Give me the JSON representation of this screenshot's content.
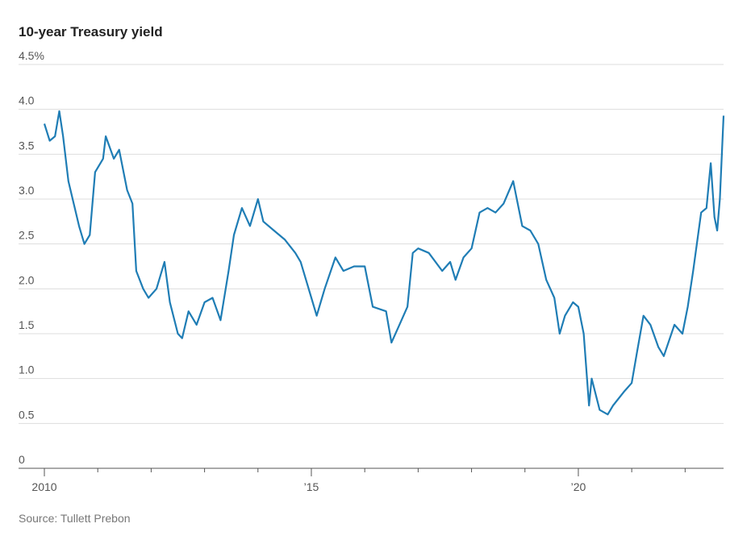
{
  "chart_data": {
    "type": "line",
    "title": "10-year Treasury yield",
    "source": "Source: Tullett Prebon",
    "xlim": [
      2010,
      2022.72
    ],
    "ylim": [
      0,
      4.5
    ],
    "xticks": [
      {
        "value": 2010,
        "label": "2010"
      },
      {
        "value": 2015,
        "label": "’15"
      },
      {
        "value": 2020,
        "label": "’20"
      }
    ],
    "xminorticks": [
      2011,
      2012,
      2013,
      2014,
      2016,
      2017,
      2018,
      2019,
      2021,
      2022
    ],
    "yticks": [
      0,
      0.5,
      {
        "value": 1,
        "label": "1.0"
      },
      1.5,
      {
        "value": 2,
        "label": "2.0"
      },
      2.5,
      {
        "value": 3,
        "label": "3.0"
      },
      3.5,
      {
        "value": 4,
        "label": "4.0"
      },
      {
        "value": 4.5,
        "label": "4.5%"
      }
    ],
    "grid": true,
    "x": [
      2010.0,
      2010.1,
      2010.2,
      2010.28,
      2010.35,
      2010.45,
      2010.55,
      2010.65,
      2010.75,
      2010.85,
      2010.95,
      2011.1,
      2011.15,
      2011.3,
      2011.4,
      2011.55,
      2011.65,
      2011.72,
      2011.85,
      2011.95,
      2012.1,
      2012.25,
      2012.35,
      2012.5,
      2012.58,
      2012.7,
      2012.85,
      2013.0,
      2013.15,
      2013.3,
      2013.45,
      2013.55,
      2013.7,
      2013.85,
      2014.0,
      2014.1,
      2014.3,
      2014.5,
      2014.7,
      2014.8,
      2015.0,
      2015.1,
      2015.25,
      2015.45,
      2015.6,
      2015.8,
      2016.0,
      2016.15,
      2016.4,
      2016.5,
      2016.65,
      2016.8,
      2016.9,
      2017.0,
      2017.2,
      2017.45,
      2017.6,
      2017.7,
      2017.85,
      2018.0,
      2018.15,
      2018.3,
      2018.45,
      2018.6,
      2018.78,
      2018.95,
      2019.1,
      2019.25,
      2019.4,
      2019.55,
      2019.65,
      2019.75,
      2019.9,
      2020.0,
      2020.1,
      2020.2,
      2020.25,
      2020.4,
      2020.55,
      2020.65,
      2020.85,
      2021.0,
      2021.1,
      2021.22,
      2021.35,
      2021.5,
      2021.6,
      2021.8,
      2021.95,
      2022.05,
      2022.15,
      2022.3,
      2022.4,
      2022.48,
      2022.55,
      2022.6,
      2022.65,
      2022.72
    ],
    "series": [
      {
        "color": "#1f7db5",
        "values": [
          3.84,
          3.65,
          3.7,
          3.98,
          3.7,
          3.2,
          2.95,
          2.7,
          2.5,
          2.6,
          3.3,
          3.45,
          3.7,
          3.45,
          3.55,
          3.1,
          2.95,
          2.2,
          2.0,
          1.9,
          2.0,
          2.3,
          1.85,
          1.5,
          1.45,
          1.75,
          1.6,
          1.85,
          1.9,
          1.65,
          2.2,
          2.6,
          2.9,
          2.7,
          3.0,
          2.75,
          2.65,
          2.55,
          2.4,
          2.3,
          1.9,
          1.7,
          2.0,
          2.35,
          2.2,
          2.25,
          2.25,
          1.8,
          1.75,
          1.4,
          1.6,
          1.8,
          2.4,
          2.45,
          2.4,
          2.2,
          2.3,
          2.1,
          2.35,
          2.45,
          2.85,
          2.9,
          2.85,
          2.95,
          3.2,
          2.7,
          2.65,
          2.5,
          2.1,
          1.9,
          1.5,
          1.7,
          1.85,
          1.8,
          1.5,
          0.7,
          1.0,
          0.65,
          0.6,
          0.7,
          0.85,
          0.95,
          1.3,
          1.7,
          1.6,
          1.35,
          1.25,
          1.6,
          1.5,
          1.8,
          2.2,
          2.85,
          2.9,
          3.4,
          2.8,
          2.65,
          3.0,
          3.93
        ]
      }
    ]
  }
}
